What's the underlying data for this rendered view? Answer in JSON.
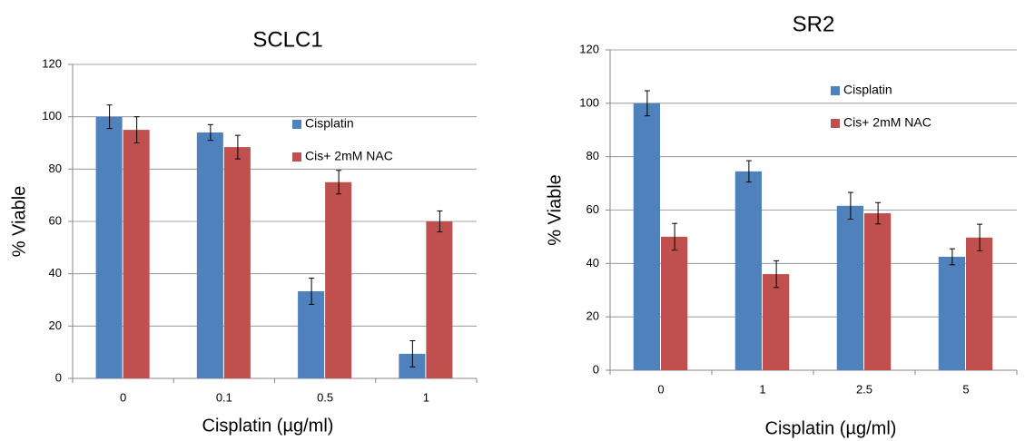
{
  "chart_data": [
    {
      "type": "bar",
      "title": "SCLC1",
      "xlabel": "Cisplatin (µg/ml)",
      "ylabel": "% Viable",
      "categories": [
        "0",
        "0.1",
        "0.5",
        "1"
      ],
      "series": [
        {
          "name": "Cisplatin",
          "color": "#4f81bd",
          "values": [
            100,
            94,
            33.3,
            9.4
          ],
          "errors": [
            4.5,
            3,
            5,
            5
          ]
        },
        {
          "name": "Cis+ 2mM NAC",
          "color": "#c0504d",
          "values": [
            95,
            88.4,
            75,
            60
          ],
          "errors": [
            5,
            4.5,
            4.5,
            4
          ]
        }
      ],
      "ylim": [
        0,
        120
      ],
      "yticks": [
        0,
        20,
        40,
        60,
        80,
        100,
        120
      ],
      "grid": true
    },
    {
      "type": "bar",
      "title": "SR2",
      "xlabel": "Cisplatin (µg/ml)",
      "ylabel": "% Viable",
      "categories": [
        "0",
        "1",
        "2.5",
        "5"
      ],
      "series": [
        {
          "name": "Cisplatin",
          "color": "#4f81bd",
          "values": [
            100,
            74.5,
            61.6,
            42.5
          ],
          "errors": [
            4.7,
            4,
            5,
            3
          ]
        },
        {
          "name": "Cis+ 2mM NAC",
          "color": "#c0504d",
          "values": [
            50,
            36,
            58.8,
            49.7
          ],
          "errors": [
            5,
            5,
            4,
            5
          ]
        }
      ],
      "ylim": [
        0,
        120
      ],
      "yticks": [
        0,
        20,
        40,
        60,
        80,
        100,
        120
      ],
      "grid": true
    }
  ]
}
